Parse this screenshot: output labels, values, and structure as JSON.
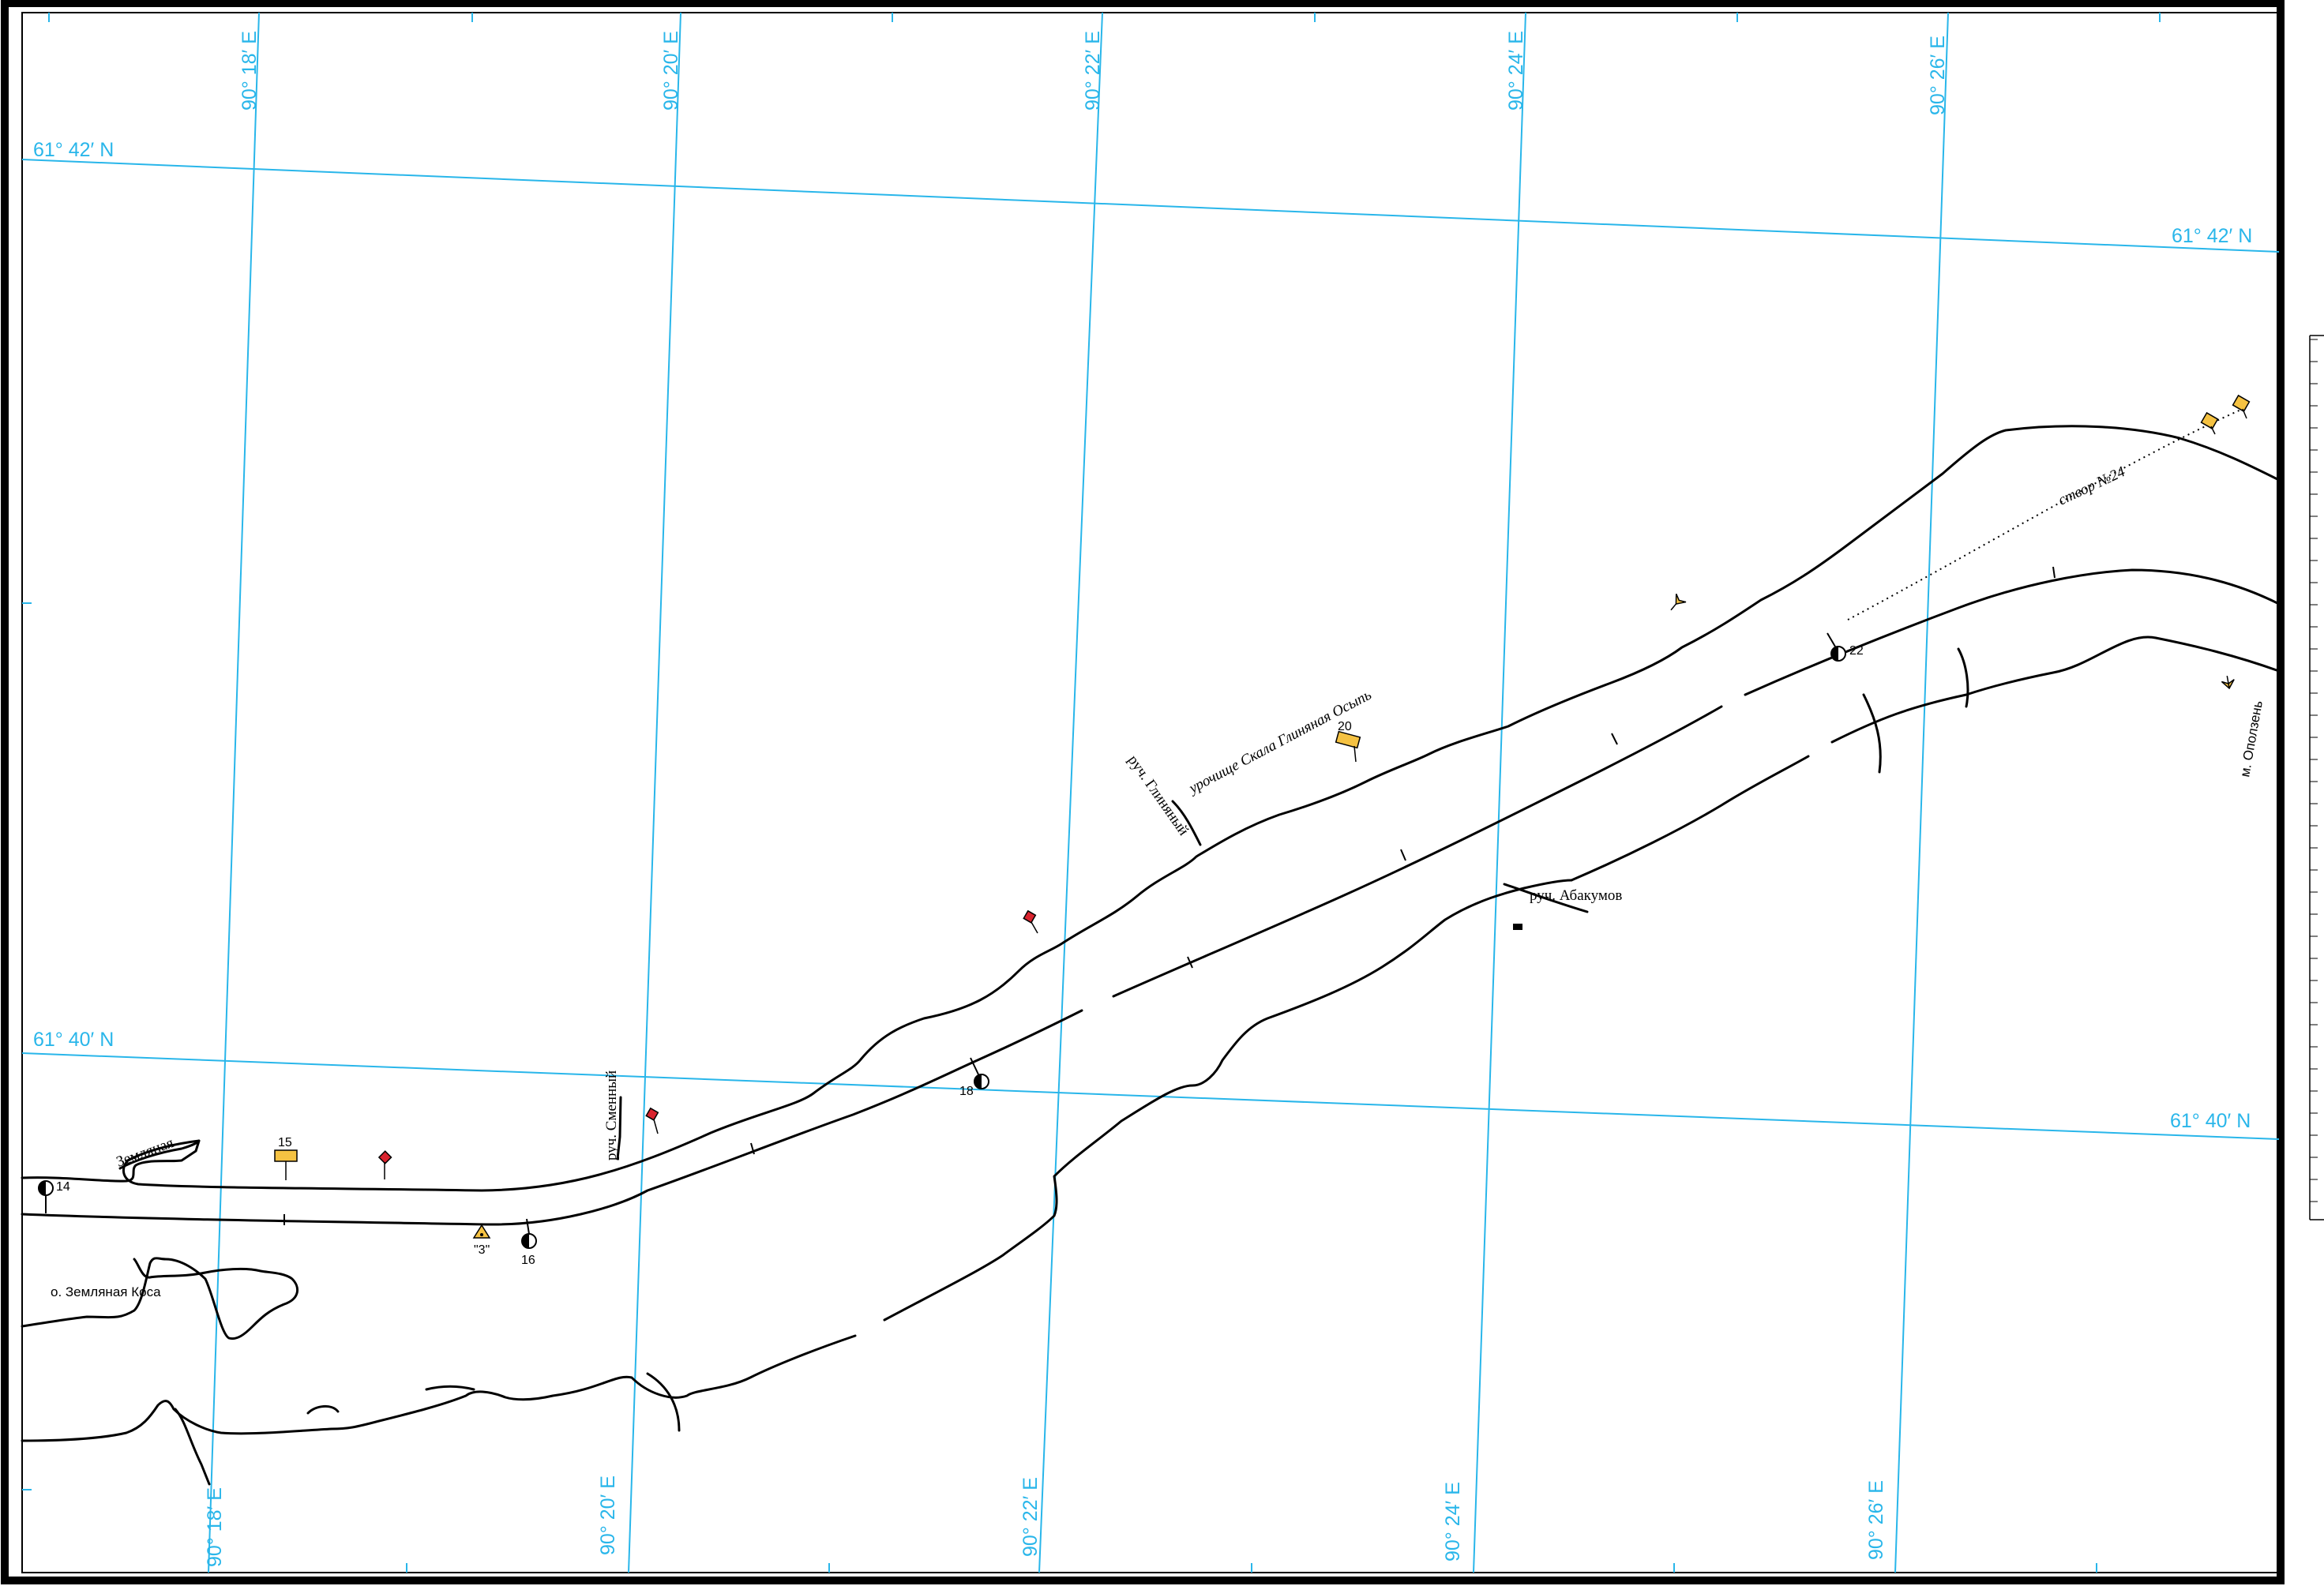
{
  "map": {
    "colors": {
      "grid": "#29b6ea",
      "river": "#000000",
      "buoy_yellow": "#f5c242",
      "buoy_red": "#d9232e",
      "frame": "#000000"
    },
    "meridians": [
      "90° 18′ E",
      "90° 20′ E",
      "90° 22′ E",
      "90° 24′ E",
      "90° 26′ E"
    ],
    "parallels": [
      "61° 42′ N",
      "61° 40′ N"
    ],
    "place_names": {
      "zemlyanaya": "Земляная",
      "o_zemlyanaya_kosa": "о. Земляная Коса",
      "ruch_smenny": "руч. Сменный",
      "ruch_glinyany": "руч. Глиняный",
      "urochishche": "урочище Скала Глиняная Осыпь",
      "ruch_abakumov": "руч. Абакумов",
      "m_opolzen": "м. Оползень",
      "stvor": "створ №24"
    },
    "kilometer_marks": [
      "14",
      "15",
      "16",
      "18",
      "20",
      "22",
      "\"3\""
    ],
    "icons": {
      "floating_buoy": "half-filled-circle-icon",
      "bank_sign": "yellow-flag-sign-icon",
      "red_buoy": "red-diamond-icon",
      "leading_light": "yellow-arrow-icon",
      "obstruction": "black-rectangle-icon",
      "triangle_mark": "yellow-triangle-icon"
    }
  }
}
